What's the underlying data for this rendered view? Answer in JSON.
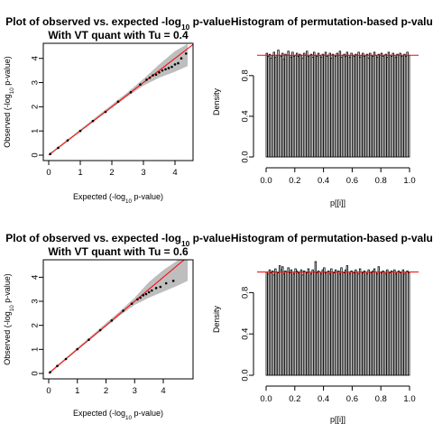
{
  "chart_data": [
    {
      "type": "scatter",
      "title_lines": [
        "Plot of observed vs. expected -log10 p-value",
        "With VT quant with Tu =  0.4"
      ],
      "title_line1": {
        "pre": "Plot of observed vs. expected -log",
        "sub": "10",
        "post": " p-value"
      },
      "title_line2": "With VT quant with Tu =  0.4",
      "xlabel": {
        "pre": "Expected (-log",
        "sub": "10",
        "post": " p-value)"
      },
      "ylabel": {
        "pre": "Observed (-log",
        "sub": "10",
        "post": " p-value)"
      },
      "xlim": [
        0,
        4.4
      ],
      "ylim": [
        0,
        4.4
      ],
      "xticks": [
        0,
        1,
        2,
        3,
        4
      ],
      "yticks": [
        0,
        1,
        2,
        3,
        4
      ],
      "reference_line": {
        "slope": 1,
        "intercept": 0,
        "color": "#ff0000"
      },
      "band": {
        "color": "#bebebe",
        "lower": [
          [
            0,
            0
          ],
          [
            2.5,
            2.43
          ],
          [
            3.0,
            2.87
          ],
          [
            3.5,
            3.2
          ],
          [
            4.0,
            3.45
          ],
          [
            4.4,
            3.68
          ]
        ],
        "upper": [
          [
            0,
            0.05
          ],
          [
            2.5,
            2.6
          ],
          [
            3.0,
            3.15
          ],
          [
            3.5,
            3.75
          ],
          [
            4.0,
            4.3
          ],
          [
            4.4,
            4.6
          ]
        ]
      },
      "series": [
        {
          "points": [
            [
              0.05,
              0.05
            ],
            [
              0.3,
              0.3
            ],
            [
              0.6,
              0.61
            ],
            [
              1.0,
              1.0
            ],
            [
              1.4,
              1.41
            ],
            [
              1.8,
              1.79
            ],
            [
              2.2,
              2.21
            ],
            [
              2.6,
              2.6
            ],
            [
              2.9,
              2.92
            ],
            [
              3.1,
              3.12
            ],
            [
              3.2,
              3.2
            ],
            [
              3.3,
              3.3
            ],
            [
              3.4,
              3.33
            ],
            [
              3.5,
              3.42
            ],
            [
              3.6,
              3.5
            ],
            [
              3.7,
              3.55
            ],
            [
              3.8,
              3.6
            ],
            [
              3.9,
              3.65
            ],
            [
              4.0,
              3.75
            ],
            [
              4.1,
              3.8
            ],
            [
              4.2,
              4.0
            ],
            [
              4.35,
              4.2
            ]
          ]
        }
      ]
    },
    {
      "type": "bar",
      "title": "Histogram of permutation-based p-values",
      "xlabel": "p[[i]]",
      "ylabel": "Density",
      "xlim": [
        0,
        1
      ],
      "ylim": [
        0,
        1.1
      ],
      "xticks": [
        "0.0",
        "0.2",
        "0.4",
        "0.6",
        "0.8",
        "1.0"
      ],
      "yticks": [
        "0.0",
        "0.4",
        "0.8"
      ],
      "bin_width": 0.01,
      "reference_line": {
        "y": 1,
        "color": "#ff0000"
      },
      "values": [
        1.02,
        0.99,
        1.01,
        0.97,
        1.0,
        1.03,
        0.98,
        1.0,
        1.05,
        1.0,
        0.99,
        1.02,
        0.96,
        1.01,
        1.0,
        1.04,
        1.0,
        0.98,
        1.03,
        0.99,
        1.0,
        1.02,
        0.99,
        1.01,
        1.0,
        0.97,
        1.02,
        1.0,
        1.04,
        0.99,
        1.0,
        1.01,
        0.98,
        1.03,
        1.0,
        0.99,
        1.02,
        1.0,
        0.98,
        1.01,
        1.0,
        1.03,
        0.99,
        1.0,
        1.02,
        0.97,
        1.01,
        1.0,
        0.99,
        1.02,
        1.0,
        1.04,
        0.98,
        1.0,
        1.01,
        0.99,
        1.03,
        1.0,
        0.98,
        1.02,
        1.0,
        0.99,
        1.01,
        1.0,
        1.03,
        0.98,
        1.0,
        1.02,
        0.99,
        1.0,
        1.01,
        0.97,
        1.02,
        1.0,
        0.99,
        1.03,
        1.0,
        0.98,
        1.01,
        1.0,
        1.02,
        0.99,
        1.0,
        1.01,
        0.98,
        1.03,
        1.0,
        0.99,
        1.02,
        1.0,
        0.98,
        1.01,
        1.0,
        1.02,
        0.99,
        1.0,
        1.01,
        0.99,
        1.03,
        1.0
      ]
    },
    {
      "type": "scatter",
      "title_lines": [
        "Plot of observed vs. expected -log10 p-value",
        "With VT quant with Tu =  0.6"
      ],
      "title_line1": {
        "pre": "Plot of observed vs. expected -log",
        "sub": "10",
        "post": " p-value"
      },
      "title_line2": "With VT quant with Tu =  0.6",
      "xlabel": {
        "pre": "Expected (-log",
        "sub": "10",
        "post": " p-value)"
      },
      "ylabel": {
        "pre": "Observed (-log",
        "sub": "10",
        "post": " p-value)"
      },
      "xlim": [
        0,
        4.85
      ],
      "ylim": [
        0,
        4.5
      ],
      "xticks": [
        0,
        1,
        2,
        3,
        4
      ],
      "yticks": [
        0,
        1,
        2,
        3,
        4
      ],
      "reference_line": {
        "slope": 1,
        "intercept": 0,
        "color": "#ff0000"
      },
      "band": {
        "color": "#bebebe",
        "lower": [
          [
            0,
            0
          ],
          [
            2.5,
            2.42
          ],
          [
            3.0,
            2.85
          ],
          [
            3.5,
            3.15
          ],
          [
            4.0,
            3.4
          ],
          [
            4.5,
            3.65
          ],
          [
            4.85,
            3.85
          ]
        ],
        "upper": [
          [
            0,
            0.05
          ],
          [
            2.5,
            2.6
          ],
          [
            3.0,
            3.15
          ],
          [
            3.5,
            3.8
          ],
          [
            4.0,
            4.3
          ],
          [
            4.5,
            4.7
          ],
          [
            4.85,
            4.9
          ]
        ]
      },
      "series": [
        {
          "points": [
            [
              0.05,
              0.05
            ],
            [
              0.3,
              0.31
            ],
            [
              0.6,
              0.6
            ],
            [
              1.0,
              1.01
            ],
            [
              1.4,
              1.4
            ],
            [
              1.8,
              1.8
            ],
            [
              2.2,
              2.2
            ],
            [
              2.6,
              2.61
            ],
            [
              2.9,
              2.9
            ],
            [
              3.1,
              3.08
            ],
            [
              3.2,
              3.15
            ],
            [
              3.3,
              3.25
            ],
            [
              3.4,
              3.3
            ],
            [
              3.5,
              3.38
            ],
            [
              3.6,
              3.45
            ],
            [
              3.75,
              3.55
            ],
            [
              3.9,
              3.6
            ],
            [
              4.1,
              3.75
            ],
            [
              4.35,
              3.85
            ]
          ]
        }
      ]
    },
    {
      "type": "bar",
      "title": "Histogram of permutation-based p-values",
      "xlabel": "p[[i]]",
      "ylabel": "Density",
      "xlim": [
        0,
        1
      ],
      "ylim": [
        0,
        1.1
      ],
      "xticks": [
        "0.0",
        "0.2",
        "0.4",
        "0.6",
        "0.8",
        "1.0"
      ],
      "yticks": [
        "0.0",
        "0.4",
        "0.8"
      ],
      "bin_width": 0.01,
      "reference_line": {
        "y": 1,
        "color": "#ff0000"
      },
      "values": [
        1.0,
        0.98,
        1.02,
        0.99,
        1.01,
        0.97,
        1.03,
        1.0,
        0.99,
        1.06,
        1.02,
        1.05,
        0.98,
        1.01,
        1.0,
        1.04,
        0.99,
        1.02,
        1.0,
        0.98,
        1.03,
        1.01,
        0.99,
        1.0,
        1.02,
        0.97,
        1.01,
        1.0,
        0.99,
        1.03,
        1.0,
        0.98,
        1.02,
        1.0,
        1.1,
        0.99,
        1.01,
        1.0,
        0.98,
        1.02,
        1.04,
        0.99,
        1.0,
        1.01,
        0.98,
        1.03,
        1.0,
        0.99,
        1.02,
        1.0,
        1.01,
        0.98,
        1.04,
        1.0,
        0.99,
        1.02,
        1.06,
        1.0,
        0.98,
        1.01,
        1.0,
        0.99,
        1.02,
        1.0,
        0.98,
        1.03,
        1.0,
        0.99,
        1.01,
        1.0,
        0.98,
        1.02,
        1.0,
        0.99,
        1.01,
        1.03,
        1.0,
        0.98,
        1.05,
        1.0,
        0.99,
        1.01,
        1.0,
        0.98,
        1.02,
        1.0,
        0.99,
        1.01,
        1.0,
        1.02,
        0.98,
        1.0,
        1.01,
        0.99,
        1.0,
        1.02,
        0.98,
        1.0,
        1.01,
        0.99
      ]
    }
  ]
}
